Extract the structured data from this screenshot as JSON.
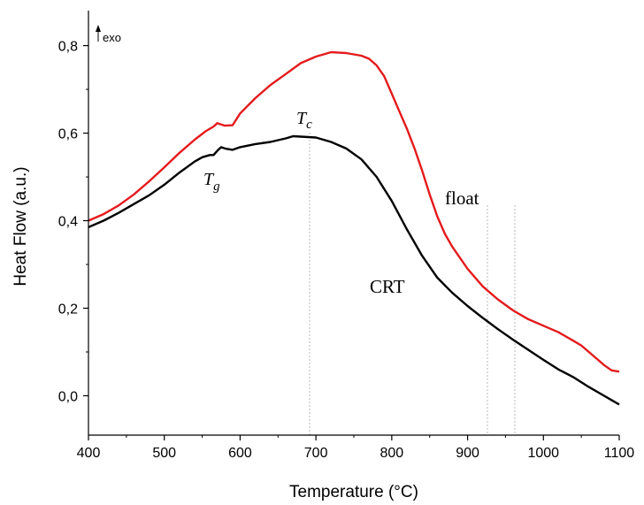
{
  "chart_data": {
    "type": "line",
    "title": "",
    "xlabel": "Temperature (°C)",
    "ylabel": "Heat Flow (a.u.)",
    "xlim": [
      400,
      1100
    ],
    "ylim": [
      -0.09,
      0.88
    ],
    "xticks": [
      400,
      500,
      600,
      700,
      800,
      900,
      1000,
      1100
    ],
    "xticklabels": [
      "400",
      "500",
      "600",
      "700",
      "800",
      "900",
      "1000",
      "1100"
    ],
    "yticks": [
      0.0,
      0.2,
      0.4,
      0.6,
      0.8
    ],
    "yticklabels": [
      "0,0",
      "0,2",
      "0,4",
      "0,6",
      "0,8"
    ],
    "grid": false,
    "legend": "none",
    "exo_indicator": "exo",
    "series": [
      {
        "name": "float",
        "color": "#e41a1c",
        "x": [
          400,
          420,
          440,
          460,
          480,
          500,
          520,
          540,
          555,
          565,
          570,
          575,
          580,
          590,
          600,
          620,
          640,
          660,
          680,
          700,
          720,
          740,
          760,
          770,
          780,
          790,
          800,
          810,
          820,
          830,
          840,
          850,
          860,
          870,
          880,
          900,
          920,
          940,
          960,
          980,
          1000,
          1020,
          1040,
          1050,
          1060,
          1070,
          1080,
          1090,
          1100
        ],
        "y": [
          0.4,
          0.415,
          0.435,
          0.46,
          0.49,
          0.522,
          0.555,
          0.585,
          0.605,
          0.615,
          0.623,
          0.62,
          0.617,
          0.618,
          0.645,
          0.68,
          0.71,
          0.735,
          0.76,
          0.775,
          0.785,
          0.783,
          0.777,
          0.77,
          0.755,
          0.73,
          0.69,
          0.65,
          0.61,
          0.565,
          0.515,
          0.46,
          0.41,
          0.37,
          0.34,
          0.29,
          0.25,
          0.22,
          0.195,
          0.175,
          0.16,
          0.145,
          0.125,
          0.115,
          0.1,
          0.085,
          0.07,
          0.058,
          0.055
        ]
      },
      {
        "name": "CRT",
        "color": "#000000",
        "x": [
          400,
          420,
          440,
          460,
          480,
          500,
          520,
          540,
          550,
          560,
          565,
          570,
          575,
          580,
          590,
          600,
          620,
          640,
          660,
          670,
          680,
          690,
          700,
          720,
          740,
          760,
          780,
          800,
          820,
          840,
          860,
          880,
          900,
          920,
          940,
          960,
          980,
          1000,
          1020,
          1040,
          1060,
          1080,
          1090,
          1100
        ],
        "y": [
          0.385,
          0.4,
          0.418,
          0.438,
          0.458,
          0.482,
          0.51,
          0.535,
          0.545,
          0.55,
          0.55,
          0.56,
          0.568,
          0.565,
          0.562,
          0.568,
          0.575,
          0.58,
          0.588,
          0.593,
          0.592,
          0.591,
          0.59,
          0.58,
          0.565,
          0.54,
          0.5,
          0.445,
          0.38,
          0.32,
          0.27,
          0.235,
          0.205,
          0.178,
          0.152,
          0.128,
          0.105,
          0.082,
          0.06,
          0.042,
          0.02,
          0.0,
          -0.01,
          -0.02
        ]
      }
    ],
    "annotations": [
      {
        "id": "tc",
        "label": "T",
        "sub": "c",
        "x": 690
      },
      {
        "id": "tg",
        "label": "T",
        "sub": "g",
        "x": 565
      }
    ],
    "series_labels": [
      "float",
      "CRT"
    ]
  }
}
